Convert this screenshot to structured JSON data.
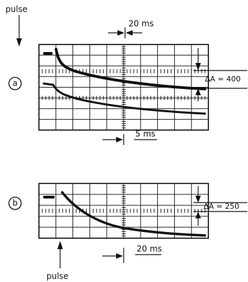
{
  "panel_a": {
    "label": "a",
    "pulse": "pulse",
    "time_top": "20 ms",
    "delta": "ΔA = 400",
    "time_bottom": "5 ms"
  },
  "panel_b": {
    "label": "b",
    "delta": "ΔA = 250",
    "time": "20 ms",
    "pulse": "pulse"
  }
}
